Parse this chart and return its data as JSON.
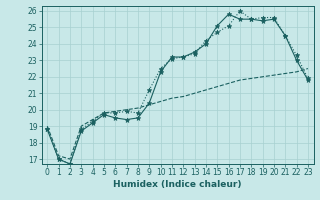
{
  "xlabel": "Humidex (Indice chaleur)",
  "bg_color": "#c8e8e8",
  "line_color": "#1a6060",
  "grid_color": "#a8d0d0",
  "xlim": [
    -0.5,
    23.5
  ],
  "ylim": [
    16.7,
    26.3
  ],
  "yticks": [
    17,
    18,
    19,
    20,
    21,
    22,
    23,
    24,
    25,
    26
  ],
  "xticks": [
    0,
    1,
    2,
    3,
    4,
    5,
    6,
    7,
    8,
    9,
    10,
    11,
    12,
    13,
    14,
    15,
    16,
    17,
    18,
    19,
    20,
    21,
    22,
    23
  ],
  "line1_x": [
    0,
    1,
    2,
    3,
    4,
    5,
    6,
    7,
    8,
    9,
    10,
    11,
    12,
    13,
    14,
    15,
    16,
    17,
    18,
    19,
    20,
    21,
    22,
    23
  ],
  "line1_y": [
    18.8,
    17.0,
    16.7,
    18.8,
    19.3,
    19.8,
    19.8,
    19.9,
    19.8,
    21.2,
    22.5,
    23.1,
    23.2,
    23.4,
    24.2,
    24.7,
    25.1,
    26.0,
    25.5,
    25.6,
    25.6,
    24.5,
    23.3,
    21.9
  ],
  "line2_x": [
    0,
    1,
    2,
    3,
    4,
    5,
    6,
    7,
    8,
    9,
    10,
    11,
    12,
    13,
    14,
    15,
    16,
    17,
    18,
    19,
    20,
    21,
    22,
    23
  ],
  "line2_y": [
    18.8,
    17.0,
    16.7,
    18.7,
    19.2,
    19.7,
    19.5,
    19.4,
    19.5,
    20.4,
    22.3,
    23.2,
    23.2,
    23.5,
    24.0,
    25.1,
    25.8,
    25.5,
    25.5,
    25.4,
    25.5,
    24.5,
    23.0,
    21.8
  ],
  "line3_x": [
    0,
    1,
    2,
    3,
    4,
    5,
    6,
    7,
    8,
    9,
    10,
    11,
    12,
    13,
    14,
    15,
    16,
    17,
    18,
    19,
    20,
    21,
    22,
    23
  ],
  "line3_y": [
    19.0,
    17.2,
    17.0,
    19.0,
    19.4,
    19.8,
    19.9,
    20.0,
    20.1,
    20.3,
    20.5,
    20.7,
    20.8,
    21.0,
    21.2,
    21.4,
    21.6,
    21.8,
    21.9,
    22.0,
    22.1,
    22.2,
    22.3,
    22.5
  ],
  "xlabel_fontsize": 6.5,
  "tick_fontsize": 5.5
}
